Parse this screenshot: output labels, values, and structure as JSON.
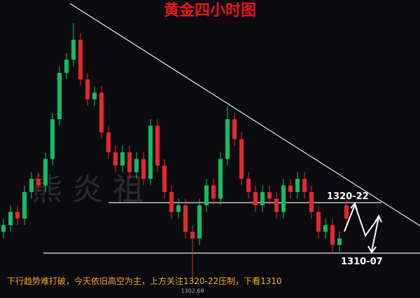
{
  "chart_data": {
    "type": "candlestick",
    "title": "黄金四小时图",
    "watermark": "熊 炎 祖",
    "annotations": [
      "1320-22",
      "1310-07"
    ],
    "caption": "下行趋势难打破，今天依旧高空为主，上方关注1320-22压制，下看1310",
    "up_color": "#10c060",
    "down_color": "#e8262d",
    "ylim": [
      1300,
      1345
    ],
    "open": [
      1310,
      1311,
      1313,
      1312,
      1316,
      1318,
      1317,
      1321,
      1327,
      1334,
      1336,
      1339,
      1333,
      1330,
      1331,
      1325,
      1322,
      1320,
      1322,
      1319,
      1321,
      1318,
      1326,
      1320,
      1316,
      1313,
      1314,
      1310,
      1309,
      1314,
      1317,
      1315,
      1321,
      1327,
      1324,
      1318,
      1316,
      1314,
      1316,
      1315,
      1313,
      1317,
      1316,
      1318,
      1316,
      1313,
      1310,
      1311,
      1308,
      1314
    ],
    "high": [
      1312,
      1314,
      1314,
      1317,
      1319,
      1319,
      1322,
      1328,
      1335,
      1337,
      1341.5,
      1340,
      1334,
      1332,
      1332,
      1326,
      1323,
      1323,
      1323,
      1322,
      1322,
      1327,
      1327,
      1321,
      1317,
      1315,
      1315,
      1311,
      1315,
      1318,
      1318,
      1322,
      1329,
      1328,
      1325,
      1319,
      1317,
      1317,
      1317,
      1316,
      1318,
      1318,
      1319,
      1319,
      1317,
      1314,
      1312,
      1312,
      1310,
      1315
    ],
    "low": [
      1309,
      1310,
      1311,
      1311,
      1315,
      1316,
      1316,
      1320,
      1326,
      1333,
      1335,
      1332,
      1329,
      1329,
      1324,
      1321,
      1319,
      1319,
      1318,
      1318,
      1317,
      1317,
      1319,
      1315,
      1312,
      1312,
      1309,
      1302.68,
      1308,
      1313,
      1314,
      1314,
      1320,
      1323,
      1317,
      1315,
      1313,
      1313,
      1314,
      1312,
      1312,
      1315,
      1315,
      1315,
      1312,
      1309,
      1309,
      1307,
      1307,
      1311
    ],
    "close": [
      1311,
      1313,
      1312,
      1316,
      1318,
      1317,
      1321,
      1327,
      1334,
      1336,
      1339,
      1333,
      1330,
      1331,
      1325,
      1322,
      1320,
      1322,
      1319,
      1321,
      1318,
      1326,
      1320,
      1316,
      1313,
      1314,
      1310,
      1309,
      1314,
      1317,
      1315,
      1321,
      1327,
      1324,
      1318,
      1316,
      1314,
      1316,
      1315,
      1313,
      1317,
      1316,
      1318,
      1316,
      1313,
      1310,
      1311,
      1308,
      1309,
      1312
    ]
  }
}
